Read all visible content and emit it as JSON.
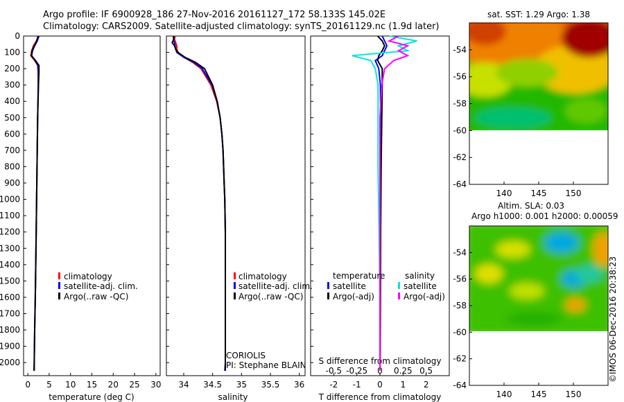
{
  "title_line1": "Argo profile: IF 6900928_186 27-Nov-2016 20161127_172 58.133S 145.02E",
  "title_line2": "Climatology: CARS2009. Satellite-adjusted climatology: synTS_20161129.nc (1.9d later)",
  "imos_stamp": "©IMOS 06-Dec-2016 20:38:23",
  "colors": {
    "climatology": "#ff0000",
    "satellite": "#0000ff",
    "argo": "#000000",
    "salinity_satellite": "#00e5e5",
    "salinity_argo": "#ff00ff"
  },
  "chart_data": [
    {
      "type": "line",
      "panel": "temperature",
      "xlabel": "temperature (deg C)",
      "ylabel": "",
      "xlim": [
        -1,
        31
      ],
      "ylim": [
        2080,
        0
      ],
      "xticks": [
        "0",
        "5",
        "10",
        "15",
        "20",
        "25",
        "30"
      ],
      "yticks": [
        "0",
        "100",
        "200",
        "300",
        "400",
        "500",
        "600",
        "700",
        "800",
        "900",
        "1000",
        "1100",
        "1200",
        "1300",
        "1400",
        "1500",
        "1600",
        "1700",
        "1800",
        "1900",
        "2000"
      ],
      "legend": [
        "climatology",
        "satellite-adj. clim.",
        "Argo(..raw -QC)"
      ],
      "y": [
        0,
        30,
        60,
        90,
        120,
        150,
        180,
        220,
        300,
        500,
        800,
        1000,
        1300,
        1600,
        1800,
        2000,
        2050
      ],
      "series": [
        {
          "name": "climatology",
          "values": [
            2.5,
            2.0,
            1.3,
            0.9,
            0.7,
            1.6,
            2.3,
            2.4,
            2.45,
            2.3,
            2.15,
            2.05,
            1.9,
            1.75,
            1.6,
            1.5,
            1.4
          ]
        },
        {
          "name": "satellite-adj. clim.",
          "values": [
            2.6,
            2.2,
            1.6,
            1.1,
            0.9,
            1.7,
            2.4,
            2.45,
            2.45,
            2.3,
            2.15,
            2.05,
            1.9,
            1.75,
            1.6,
            1.5,
            1.45
          ]
        },
        {
          "name": "Argo(..raw -QC)",
          "values": [
            2.4,
            2.1,
            1.5,
            1.0,
            0.8,
            1.8,
            2.6,
            2.6,
            2.5,
            2.3,
            2.15,
            2.05,
            1.9,
            1.75,
            1.6,
            1.5,
            1.5
          ]
        }
      ]
    },
    {
      "type": "line",
      "panel": "salinity",
      "xlabel": "salinity",
      "xlim": [
        33.7,
        36.1
      ],
      "ylim": [
        2080,
        0
      ],
      "xticks": [
        "34",
        "34.5",
        "35",
        "35.5",
        "36"
      ],
      "legend": [
        "climatology",
        "satellite-adj. clim.",
        "Argo(..raw -QC)"
      ],
      "annotation_line1": "CORIOLIS",
      "annotation_line2": "PI: Stephane BLAIN",
      "y": [
        0,
        20,
        40,
        60,
        80,
        100,
        130,
        160,
        200,
        300,
        400,
        500,
        600,
        700,
        800,
        900,
        1000,
        1200,
        1400,
        1600,
        1800,
        2000,
        2050
      ],
      "series": [
        {
          "name": "climatology",
          "values": [
            33.85,
            33.84,
            33.86,
            33.88,
            33.88,
            33.9,
            34.0,
            34.15,
            34.3,
            34.47,
            34.57,
            34.63,
            34.66,
            34.68,
            34.69,
            34.7,
            34.71,
            34.72,
            34.72,
            34.72,
            34.72,
            34.72,
            34.72
          ]
        },
        {
          "name": "satellite-adj. clim.",
          "values": [
            33.83,
            33.82,
            33.84,
            33.85,
            33.86,
            33.88,
            34.0,
            34.17,
            34.32,
            34.49,
            34.58,
            34.63,
            34.66,
            34.68,
            34.69,
            34.7,
            34.71,
            34.72,
            34.72,
            34.72,
            34.72,
            34.72,
            34.71
          ]
        },
        {
          "name": "Argo(..raw -QC)",
          "values": [
            33.82,
            33.83,
            33.8,
            33.84,
            33.86,
            33.9,
            34.02,
            34.2,
            34.36,
            34.5,
            34.58,
            34.63,
            34.66,
            34.68,
            34.69,
            34.7,
            34.71,
            34.72,
            34.72,
            34.72,
            34.72,
            34.72,
            34.72
          ]
        }
      ]
    },
    {
      "type": "line",
      "panel": "difference",
      "xlabel": "T difference from climatology",
      "top_xlabel": "S difference from climatology",
      "xlim": [
        -3,
        3
      ],
      "ylim": [
        2080,
        0
      ],
      "xticks": [
        "-2",
        "-1",
        "0",
        "1",
        "2"
      ],
      "top_xticks": [
        "-0.5",
        "-0.25",
        "0",
        "0.25",
        "0.5"
      ],
      "legend_header_t": "temperature",
      "legend_header_s": "salinity",
      "legend": [
        "satellite",
        "Argo(-adj)",
        "satellite",
        "Argo(-adj)"
      ],
      "y": [
        0,
        30,
        60,
        90,
        120,
        150,
        200,
        300,
        500,
        800,
        1200,
        1600,
        2000,
        2050
      ],
      "series": [
        {
          "name": "temperature satellite",
          "values": [
            0.1,
            0.2,
            0.3,
            0.2,
            0.1,
            -0.2,
            -0.05,
            0.02,
            0.03,
            0.02,
            0.01,
            0.0,
            0.0,
            0.0
          ]
        },
        {
          "name": "temperature Argo(-adj)",
          "values": [
            -0.1,
            0.1,
            0.2,
            0.1,
            -0.05,
            -0.1,
            0.1,
            0.1,
            0.08,
            0.05,
            0.03,
            0.02,
            0.01,
            0.0
          ]
        },
        {
          "name": "salinity satellite",
          "values": [
            0.1,
            0.4,
            0.2,
            0.3,
            -0.3,
            -0.1,
            -0.05,
            -0.02,
            -0.02,
            -0.02,
            -0.01,
            0.0,
            0.0,
            0.0
          ]
        },
        {
          "name": "salinity Argo(-adj)",
          "values": [
            0.2,
            0.1,
            0.3,
            0.2,
            0.3,
            0.15,
            0.05,
            0.02,
            0.0,
            0.0,
            0.0,
            0.0,
            0.0,
            0.0
          ]
        }
      ]
    },
    {
      "type": "heatmap",
      "panel": "sst_map",
      "title": "sat. SST: 1.29  Argo: 1.38",
      "xlim": [
        135,
        155
      ],
      "ylim": [
        -64,
        -52
      ],
      "xticks": [
        "140",
        "145",
        "150"
      ],
      "yticks": [
        "-54",
        "-56",
        "-58",
        "-60",
        "-62",
        "-64"
      ]
    },
    {
      "type": "heatmap",
      "panel": "sla_map",
      "title_line1": "Altim. SLA: 0.03",
      "title_line2": "Argo h1000: 0.001 h2000: 0.00059",
      "xlim": [
        135,
        155
      ],
      "ylim": [
        -64,
        -52
      ],
      "xticks": [
        "140",
        "145",
        "150"
      ],
      "yticks": [
        "-54",
        "-56",
        "-58",
        "-60",
        "-62",
        "-64"
      ]
    }
  ]
}
